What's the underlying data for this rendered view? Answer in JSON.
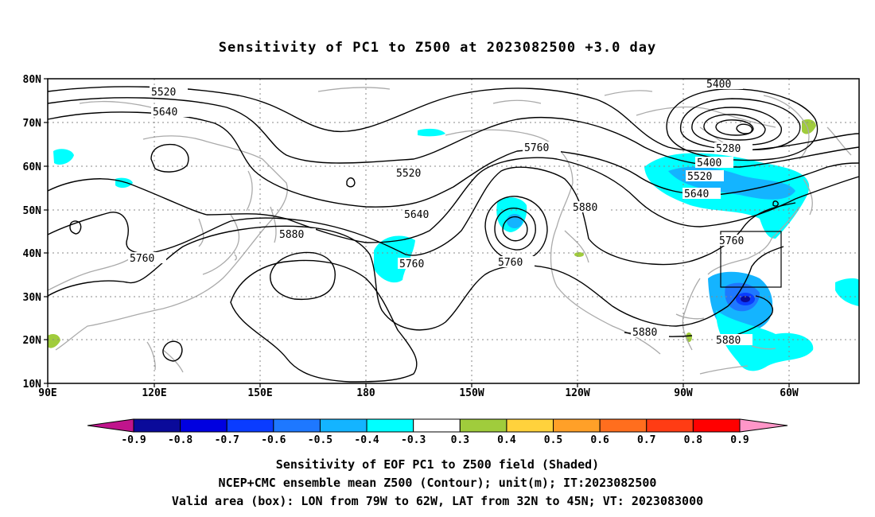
{
  "title": "Sensitivity of PC1 to Z500 at 2023082500 +3.0 day",
  "lat_labels": [
    "80N",
    "70N",
    "60N",
    "50N",
    "40N",
    "30N",
    "20N",
    "10N"
  ],
  "lon_labels": [
    "90E",
    "120E",
    "150E",
    "180",
    "150W",
    "120W",
    "90W",
    "60W"
  ],
  "contour_labels": [
    {
      "text": "5520"
    },
    {
      "text": "5640"
    },
    {
      "text": "5400"
    },
    {
      "text": "5280"
    },
    {
      "text": "5400"
    },
    {
      "text": "5520"
    },
    {
      "text": "5640"
    },
    {
      "text": "5760"
    },
    {
      "text": "5520"
    },
    {
      "text": "5640"
    },
    {
      "text": "5880"
    },
    {
      "text": "5760"
    },
    {
      "text": "5760"
    },
    {
      "text": "5880"
    },
    {
      "text": "5760"
    },
    {
      "text": "5760"
    },
    {
      "text": "5880"
    },
    {
      "text": "5880"
    }
  ],
  "colorbar": {
    "labels": [
      "-0.9",
      "-0.8",
      "-0.7",
      "-0.6",
      "-0.5",
      "-0.4",
      "-0.3",
      "0.3",
      "0.4",
      "0.5",
      "0.6",
      "0.7",
      "0.8",
      "0.9"
    ],
    "colors": [
      "#0a0a9a",
      "#0000e0",
      "#0a3cff",
      "#1e78ff",
      "#14b4ff",
      "#00ffff",
      "#ffffff",
      "#a0cc3c",
      "#ffd23c",
      "#ffa028",
      "#ff6e1e",
      "#ff3c14",
      "#ff0000"
    ],
    "low_end_color": "#c0148c",
    "high_end_color": "#ff96c8"
  },
  "valid_box": {
    "lon_from": "79W",
    "lon_to": "62W",
    "lat_from": "32N",
    "lat_to": "45N"
  },
  "captions": [
    "Sensitivity of EOF PC1 to Z500 field (Shaded)",
    "NCEP+CMC ensemble mean Z500 (Contour); unit(m); IT:2023082500",
    "Valid area (box): LON from 79W to 62W, LAT from 32N to 45N; VT: 2023083000"
  ]
}
